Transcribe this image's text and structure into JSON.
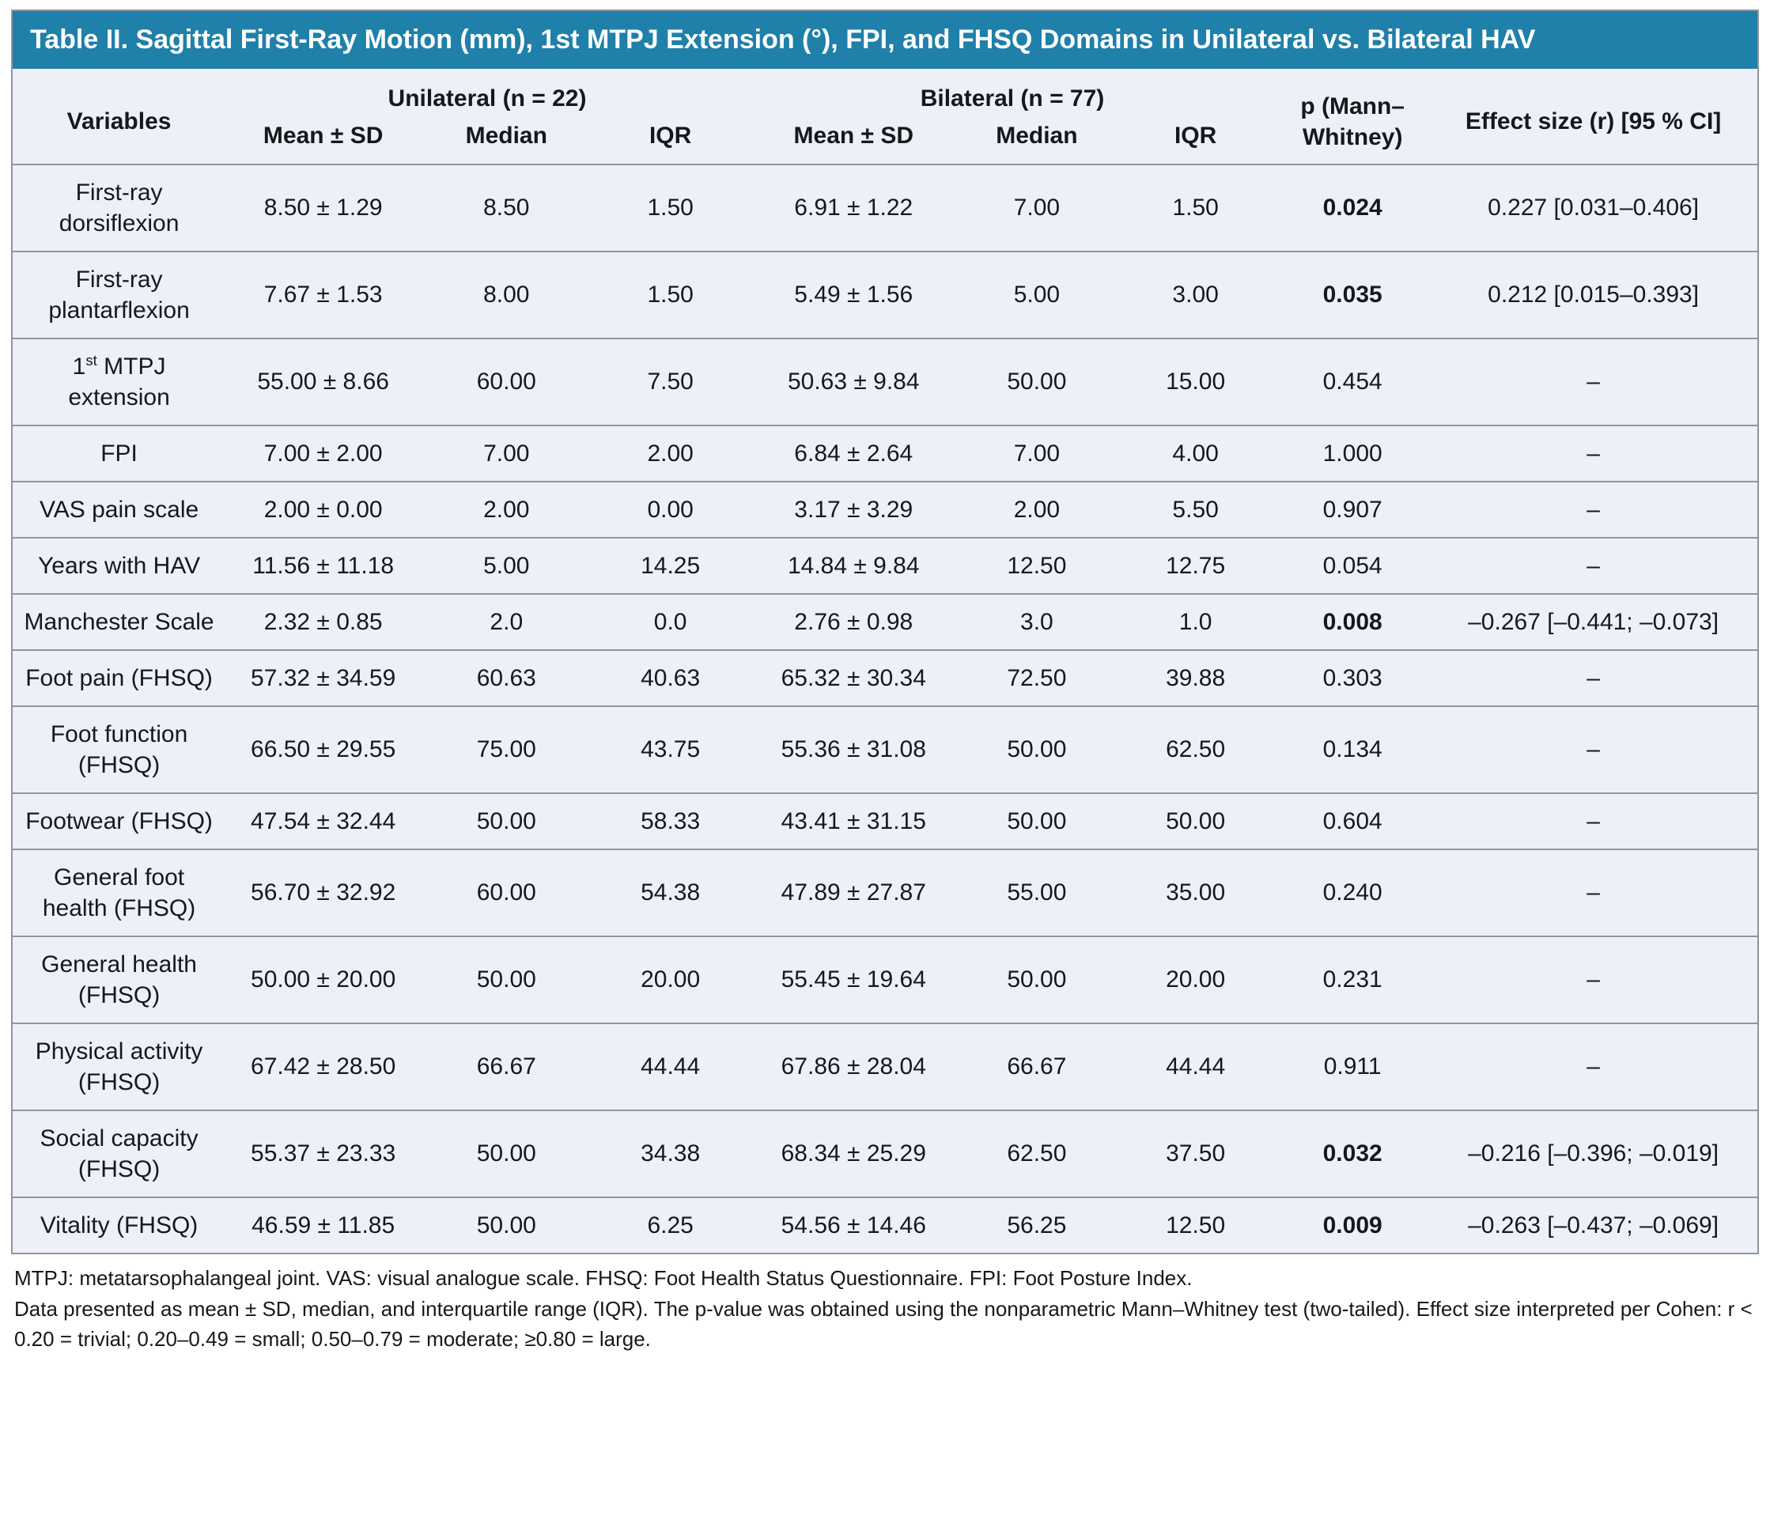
{
  "colors": {
    "title_bar": "#1f80a9",
    "table_background": "#edf1f7",
    "grid_line": "#8e96a1"
  },
  "title": "Table II. Sagittal First-Ray Motion (mm), 1st MTPJ Extension (°), FPI, and FHSQ Domains in Unilateral vs. Bilateral HAV",
  "table": {
    "headers": {
      "variables": "Variables",
      "unilateral": "Unilateral (n = 22)",
      "bilateral": "Bilateral (n = 77)",
      "p_value": "p (Mann–Whitney)",
      "effect_size": "Effect size (r) [95 % CI]"
    },
    "sub_headers": [
      "Mean ± SD",
      "Median",
      "IQR",
      "Mean ± SD",
      "Median",
      "IQR"
    ],
    "rows": [
      {
        "variable": "First-ray dorsiflexion",
        "values": [
          "8.50 ± 1.29",
          "8.50",
          "1.50",
          "6.91 ± 1.22",
          "7.00",
          "1.50"
        ],
        "p": "0.024",
        "p_bold": true,
        "effect": "0.227 [0.031–0.406]"
      },
      {
        "variable": "First-ray plantarflexion",
        "values": [
          "7.67 ± 1.53",
          "8.00",
          "1.50",
          "5.49 ± 1.56",
          "5.00",
          "3.00"
        ],
        "p": "0.035",
        "p_bold": true,
        "effect": "0.212 [0.015–0.393]"
      },
      {
        "variable": "1st MTPJ extension",
        "values": [
          "55.00 ± 8.66",
          "60.00",
          "7.50",
          "50.63 ± 9.84",
          "50.00",
          "15.00"
        ],
        "p": "0.454",
        "p_bold": false,
        "effect": "–"
      },
      {
        "variable": "FPI",
        "values": [
          "7.00 ± 2.00",
          "7.00",
          "2.00",
          "6.84 ± 2.64",
          "7.00",
          "4.00"
        ],
        "p": "1.000",
        "p_bold": false,
        "effect": "–"
      },
      {
        "variable": "VAS pain scale",
        "values": [
          "2.00 ± 0.00",
          "2.00",
          "0.00",
          "3.17 ± 3.29",
          "2.00",
          "5.50"
        ],
        "p": "0.907",
        "p_bold": false,
        "effect": "–"
      },
      {
        "variable": "Years with HAV",
        "values": [
          "11.56 ± 11.18",
          "5.00",
          "14.25",
          "14.84 ± 9.84",
          "12.50",
          "12.75"
        ],
        "p": "0.054",
        "p_bold": false,
        "effect": "–"
      },
      {
        "variable": "Manchester Scale",
        "values": [
          "2.32 ± 0.85",
          "2.0",
          "0.0",
          "2.76 ± 0.98",
          "3.0",
          "1.0"
        ],
        "p": "0.008",
        "p_bold": true,
        "effect": "–0.267 [–0.441; –0.073]"
      },
      {
        "variable": "Foot pain (FHSQ)",
        "values": [
          "57.32 ± 34.59",
          "60.63",
          "40.63",
          "65.32 ± 30.34",
          "72.50",
          "39.88"
        ],
        "p": "0.303",
        "p_bold": false,
        "effect": "–"
      },
      {
        "variable": "Foot function (FHSQ)",
        "values": [
          "66.50 ± 29.55",
          "75.00",
          "43.75",
          "55.36 ± 31.08",
          "50.00",
          "62.50"
        ],
        "p": "0.134",
        "p_bold": false,
        "effect": "–"
      },
      {
        "variable": "Footwear (FHSQ)",
        "values": [
          "47.54 ± 32.44",
          "50.00",
          "58.33",
          "43.41 ± 31.15",
          "50.00",
          "50.00"
        ],
        "p": "0.604",
        "p_bold": false,
        "effect": "–"
      },
      {
        "variable": "General foot health (FHSQ)",
        "values": [
          "56.70 ± 32.92",
          "60.00",
          "54.38",
          "47.89 ± 27.87",
          "55.00",
          "35.00"
        ],
        "p": "0.240",
        "p_bold": false,
        "effect": "–"
      },
      {
        "variable": "General health (FHSQ)",
        "values": [
          "50.00 ± 20.00",
          "50.00",
          "20.00",
          "55.45 ± 19.64",
          "50.00",
          "20.00"
        ],
        "p": "0.231",
        "p_bold": false,
        "effect": "–"
      },
      {
        "variable": "Physical activity (FHSQ)",
        "values": [
          "67.42 ± 28.50",
          "66.67",
          "44.44",
          "67.86 ± 28.04",
          "66.67",
          "44.44"
        ],
        "p": "0.911",
        "p_bold": false,
        "effect": "–"
      },
      {
        "variable": "Social capacity (FHSQ)",
        "values": [
          "55.37 ± 23.33",
          "50.00",
          "34.38",
          "68.34 ± 25.29",
          "62.50",
          "37.50"
        ],
        "p": "0.032",
        "p_bold": true,
        "effect": "–0.216 [–0.396; –0.019]"
      },
      {
        "variable": "Vitality (FHSQ)",
        "values": [
          "46.59 ± 11.85",
          "50.00",
          "6.25",
          "54.56 ± 14.46",
          "56.25",
          "12.50"
        ],
        "p": "0.009",
        "p_bold": true,
        "effect": "–0.263 [–0.437; –0.069]"
      }
    ]
  },
  "footnotes": [
    "MTPJ: metatarsophalangeal joint. VAS: visual analogue scale. FHSQ: Foot Health Status Questionnaire. FPI: Foot Posture Index.",
    "Data presented as mean ± SD, median, and interquartile range (IQR). The p-value was obtained using the nonparametric Mann–Whitney test (two-tailed). Effect size interpreted per Cohen: r < 0.20 = trivial; 0.20–0.49 = small; 0.50–0.79 = moderate; ≥0.80 = large."
  ]
}
